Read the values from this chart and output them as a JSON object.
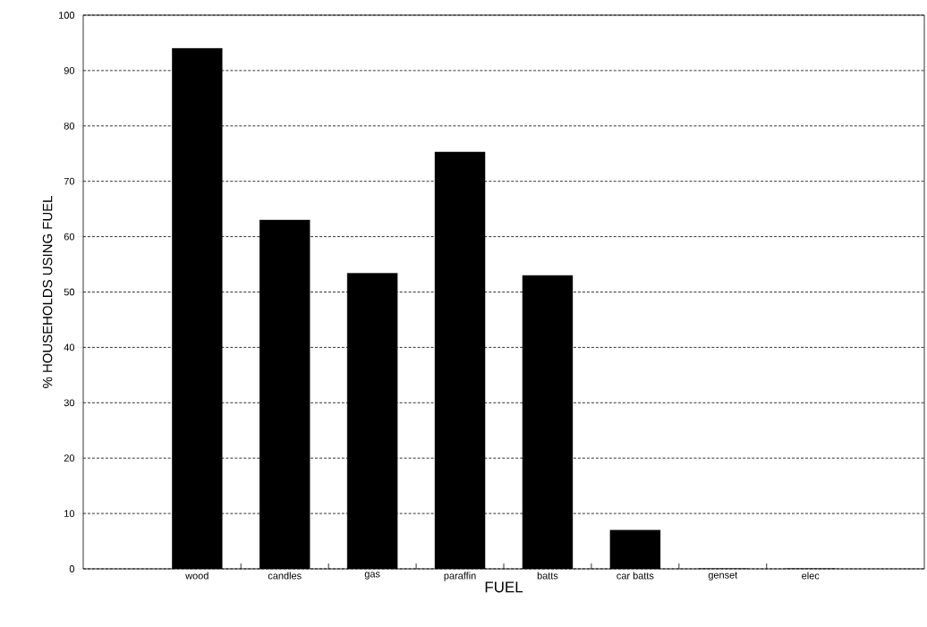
{
  "chart_data": {
    "type": "bar",
    "xlabel": "FUEL",
    "ylabel": "% HOUSEHOLDS USING FUEL",
    "categories": [
      "wood",
      "candles",
      "gas",
      "paraffin",
      "batts",
      "car batts",
      "genset",
      "elec"
    ],
    "values": [
      94,
      63,
      53.4,
      75.3,
      53,
      7,
      0,
      0
    ],
    "color": "#000000",
    "ylim": [
      0,
      100
    ],
    "yticks": [
      0,
      10,
      20,
      30,
      40,
      50,
      60,
      70,
      80,
      90,
      100
    ],
    "grid": "y",
    "line_style": "dashed"
  }
}
